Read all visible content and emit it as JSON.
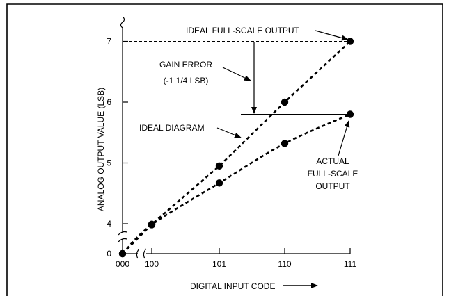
{
  "chart_data": {
    "type": "scatter",
    "xlabel": "DIGITAL INPUT CODE",
    "ylabel": "ANALOG OUTPUT VALUE (LSB)",
    "x_ticks": [
      "000",
      "100",
      "101",
      "110",
      "111"
    ],
    "y_ticks": [
      "0",
      "4",
      "5",
      "6",
      "7"
    ],
    "axis_breaks": true,
    "series": [
      {
        "name": "IDEAL DIAGRAM",
        "style": "dashed",
        "points": [
          {
            "x": "000",
            "y": 0
          },
          {
            "x": "100",
            "y": 3.93
          },
          {
            "x": "101",
            "y": 4.95
          },
          {
            "x": "110",
            "y": 6.0
          },
          {
            "x": "111",
            "y": 7.0
          }
        ]
      },
      {
        "name": "ACTUAL FULL-SCALE OUTPUT",
        "style": "dashed",
        "points": [
          {
            "x": "000",
            "y": 0
          },
          {
            "x": "100",
            "y": 3.87
          },
          {
            "x": "101",
            "y": 4.67
          },
          {
            "x": "110",
            "y": 5.32
          },
          {
            "x": "111",
            "y": 5.8
          }
        ]
      }
    ],
    "reference_lines": {
      "ideal_full_scale_y": 7.0,
      "actual_full_scale_y": 5.8
    },
    "annotations": {
      "ideal_full_scale": "IDEAL FULL-SCALE OUTPUT",
      "gain_error_line1": "GAIN ERROR",
      "gain_error_line2": "(-1 1/4 LSB)",
      "ideal_diagram": "IDEAL DIAGRAM",
      "actual_line1": "ACTUAL",
      "actual_line2": "FULL-SCALE",
      "actual_line3": "OUTPUT"
    }
  }
}
